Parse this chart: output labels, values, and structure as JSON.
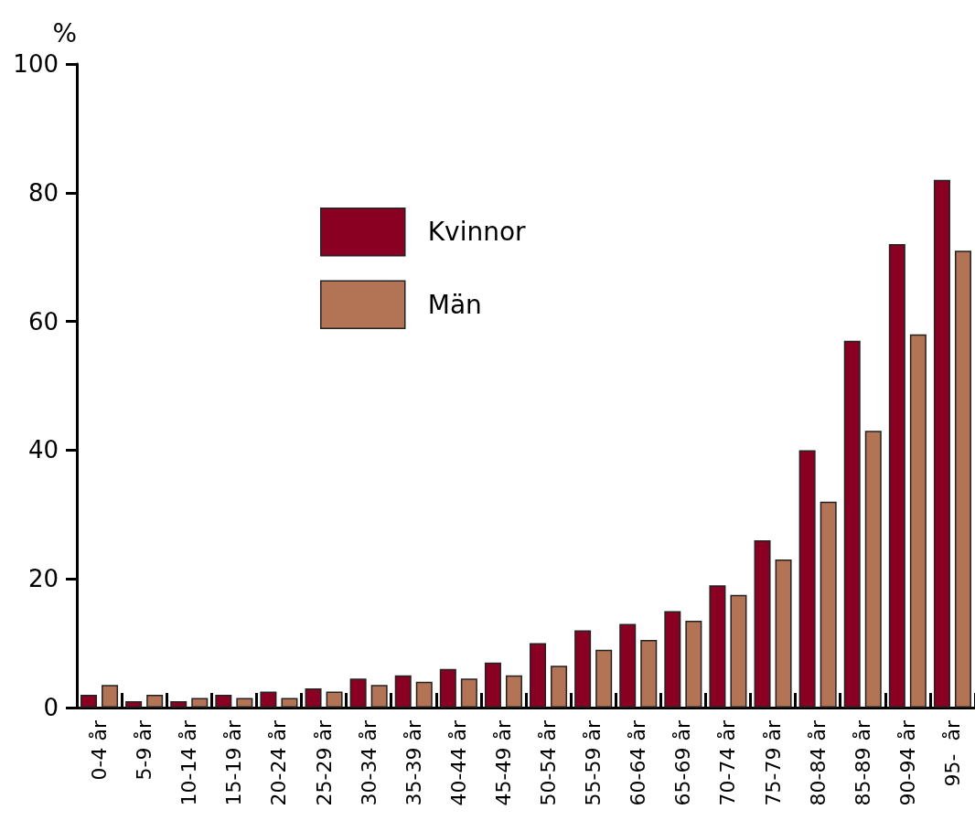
{
  "chart_data": {
    "type": "bar",
    "ylabel": "%",
    "categories": [
      "0-4 år",
      "5-9 år",
      "10-14 år",
      "15-19 år",
      "20-24 år",
      "25-29 år",
      "30-34 år",
      "35-39 år",
      "40-44 år",
      "45-49 år",
      "50-54 år",
      "55-59 år",
      "60-64 år",
      "65-69 år",
      "70-74 år",
      "75-79 år",
      "80-84 år",
      "85-89 år",
      "90-94 år",
      "95-  år"
    ],
    "series": [
      {
        "name": "Kvinnor",
        "color": "#8a0022",
        "values": [
          2,
          1,
          1,
          2,
          2.5,
          3,
          4.5,
          5,
          6,
          7,
          10,
          12,
          13,
          15,
          19,
          26,
          40,
          57,
          72,
          82
        ]
      },
      {
        "name": "Män",
        "color": "#b37355",
        "values": [
          3.5,
          2,
          1.5,
          1.5,
          1.5,
          2.5,
          3.5,
          4,
          4.5,
          5,
          6.5,
          9,
          10.5,
          13.5,
          17.5,
          23,
          32,
          43,
          58,
          71
        ]
      }
    ],
    "ylim": [
      0,
      100
    ],
    "yticks": [
      0,
      20,
      40,
      60,
      80,
      100
    ],
    "grid": false,
    "legend": "top left"
  }
}
